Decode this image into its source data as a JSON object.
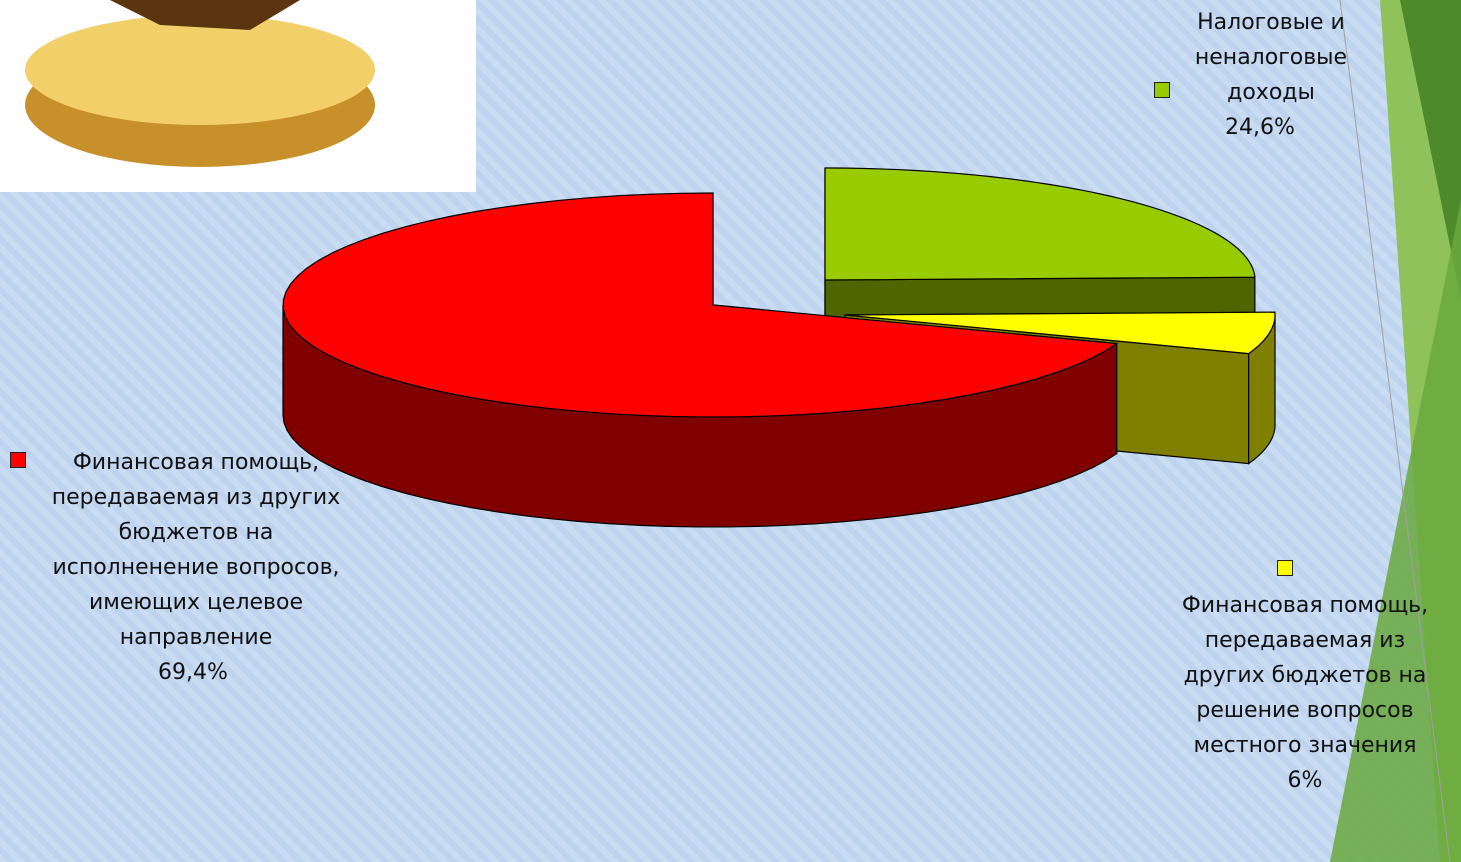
{
  "chart_data": {
    "type": "pie3d",
    "categories": [
      "Налоговые и неналоговые доходы",
      "Финансовая помощь, передаваемая из других бюджетов на решение вопросов местного значения",
      "Финансовая помощь, передаваемая из других бюджетов на исполненение вопросов, имеющих целевое направление"
    ],
    "values": [
      24.6,
      6,
      69.4
    ],
    "value_labels": [
      "24,6%",
      "6%",
      "69,4%"
    ],
    "colors": [
      "#99cc00",
      "#ffff00",
      "#ff0000"
    ]
  }
}
